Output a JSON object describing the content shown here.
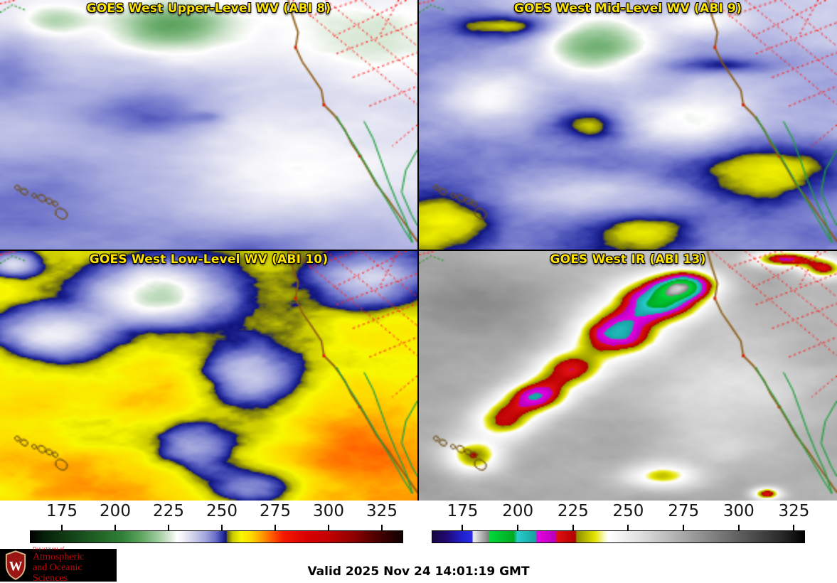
{
  "panels": [
    {
      "id": "abi8",
      "title": "GOES West Upper-Level WV (ABI 8)",
      "colormap": "wv",
      "field": {
        "seed": 11,
        "base": [
          233,
          231,
          247,
          239
        ],
        "ns": 3.2,
        "aspect": 1.8,
        "namp": 4.5,
        "warp": 0.35,
        "blobs": [
          [
            0.4,
            0.1,
            0.14,
            0.1,
            -22
          ],
          [
            0.13,
            0.08,
            0.08,
            0.06,
            -13
          ],
          [
            0.72,
            0.7,
            0.3,
            0.22,
            -8
          ],
          [
            0.86,
            0.15,
            0.18,
            0.12,
            -6
          ],
          [
            0.36,
            0.46,
            0.16,
            0.1,
            11
          ],
          [
            0.5,
            0.465,
            0.04,
            0.025,
            5
          ],
          [
            0.07,
            0.8,
            0.14,
            0.12,
            4
          ],
          [
            0.02,
            0.25,
            0.1,
            0.15,
            8
          ],
          [
            0.62,
            0.97,
            0.22,
            0.1,
            6
          ]
        ]
      }
    },
    {
      "id": "abi9",
      "title": "GOES West Mid-Level WV (ABI 9)",
      "colormap": "wv",
      "field": {
        "seed": 22,
        "base": [
          242,
          239,
          248,
          246
        ],
        "ns": 4.0,
        "aspect": 1.5,
        "namp": 6,
        "warp": 0.4,
        "blobs": [
          [
            0.22,
            0.1,
            0.13,
            0.05,
            14
          ],
          [
            0.42,
            0.5,
            0.09,
            0.07,
            12
          ],
          [
            0.05,
            0.88,
            0.12,
            0.1,
            12
          ],
          [
            0.55,
            0.93,
            0.12,
            0.07,
            10
          ],
          [
            0.83,
            0.7,
            0.17,
            0.14,
            13
          ],
          [
            0.72,
            0.26,
            0.12,
            0.035,
            11
          ],
          [
            0.42,
            0.18,
            0.13,
            0.13,
            -26
          ],
          [
            0.17,
            0.38,
            0.12,
            0.12,
            -14
          ],
          [
            0.66,
            0.48,
            0.16,
            0.12,
            -14
          ],
          [
            0.42,
            0.78,
            0.2,
            0.08,
            -12
          ],
          [
            0.68,
            0.08,
            0.1,
            0.06,
            -10
          ]
        ]
      }
    },
    {
      "id": "abi10",
      "title": "GOES West Low-Level WV (ABI 10)",
      "colormap": "wv",
      "field": {
        "seed": 33,
        "base": [
          258,
          254,
          262,
          268
        ],
        "ns": 4.5,
        "aspect": 1.4,
        "namp": 7.5,
        "warp": 0.45,
        "blobs": [
          [
            0.38,
            0.17,
            0.16,
            0.12,
            -38
          ],
          [
            0.12,
            0.33,
            0.14,
            0.1,
            -26
          ],
          [
            0.6,
            0.5,
            0.12,
            0.14,
            -24
          ],
          [
            0.47,
            0.78,
            0.1,
            0.12,
            -20
          ],
          [
            0.6,
            0.95,
            0.12,
            0.08,
            -16
          ],
          [
            0.88,
            0.12,
            0.12,
            0.1,
            -22
          ],
          [
            0.03,
            0.05,
            0.06,
            0.05,
            -24
          ],
          [
            0.12,
            0.88,
            0.15,
            0.1,
            7
          ],
          [
            0.85,
            0.8,
            0.15,
            0.12,
            8
          ],
          [
            0.3,
            0.55,
            0.18,
            0.1,
            4
          ]
        ]
      }
    },
    {
      "id": "abi13",
      "title": "GOES West IR (ABI 13)",
      "colormap": "ir",
      "field": {
        "seed": 44,
        "base": [
          272,
          268,
          276,
          274
        ],
        "ns": 5.0,
        "aspect": 1.3,
        "namp": 9,
        "warp": 0.5,
        "blobs": [
          [
            0.13,
            0.82,
            0.07,
            0.07,
            -48
          ],
          [
            0.2,
            0.68,
            0.08,
            0.08,
            -52
          ],
          [
            0.28,
            0.58,
            0.08,
            0.07,
            -58
          ],
          [
            0.36,
            0.47,
            0.09,
            0.08,
            -52
          ],
          [
            0.47,
            0.33,
            0.1,
            0.09,
            -62
          ],
          [
            0.57,
            0.2,
            0.11,
            0.09,
            -68
          ],
          [
            0.64,
            0.13,
            0.08,
            0.06,
            -60
          ],
          [
            0.87,
            0.03,
            0.08,
            0.035,
            -55
          ],
          [
            0.97,
            0.07,
            0.05,
            0.04,
            -45
          ],
          [
            0.58,
            0.9,
            0.09,
            0.05,
            -38
          ],
          [
            0.83,
            0.97,
            0.035,
            0.025,
            -55
          ],
          [
            0.75,
            0.55,
            0.2,
            0.15,
            -18
          ],
          [
            0.68,
            0.78,
            0.15,
            0.1,
            -13
          ],
          [
            0.12,
            0.2,
            0.15,
            0.12,
            10
          ]
        ]
      }
    }
  ],
  "colormaps": {
    "wv": {
      "range": [
        160,
        335
      ],
      "stops": [
        [
          160,
          "#000000"
        ],
        [
          167,
          "#06220a"
        ],
        [
          178,
          "#123f16"
        ],
        [
          192,
          "#226326"
        ],
        [
          203,
          "#2f8036"
        ],
        [
          212,
          "#5ea45f"
        ],
        [
          220,
          "#9ecb9e"
        ],
        [
          226,
          "#dcead9"
        ],
        [
          229,
          "#ffffff"
        ],
        [
          231.5,
          "#f2f2f8"
        ],
        [
          236,
          "#d2d4ec"
        ],
        [
          242,
          "#a4a8dd"
        ],
        [
          247,
          "#6a70c8"
        ],
        [
          250,
          "#3038a8"
        ],
        [
          252,
          "#10147e"
        ],
        [
          252.6,
          "#6a6a10"
        ],
        [
          255,
          "#c8c800"
        ],
        [
          259,
          "#f8f800"
        ],
        [
          264,
          "#ffd800"
        ],
        [
          269,
          "#ff9900"
        ],
        [
          274,
          "#ff5500"
        ],
        [
          279,
          "#f51800"
        ],
        [
          290,
          "#d80000"
        ],
        [
          300,
          "#c40000"
        ],
        [
          312,
          "#8e0000"
        ],
        [
          322,
          "#500000"
        ],
        [
          330,
          "#280000"
        ],
        [
          335,
          "#100000"
        ]
      ]
    },
    "ir": {
      "range": [
        161,
        330
      ],
      "stops": [
        [
          161,
          "#180640"
        ],
        [
          168,
          "#200a78"
        ],
        [
          174,
          "#2020c8"
        ],
        [
          179,
          "#2a2ae8"
        ],
        [
          179.6,
          "#f2f2f2"
        ],
        [
          186.5,
          "#808080"
        ],
        [
          187.1,
          "#00d838"
        ],
        [
          198,
          "#00a822"
        ],
        [
          199.6,
          "#28cccc"
        ],
        [
          208,
          "#18a0a0"
        ],
        [
          208.6,
          "#e400e4"
        ],
        [
          217,
          "#b800b8"
        ],
        [
          217.6,
          "#e01010"
        ],
        [
          226,
          "#b00000"
        ],
        [
          226.6,
          "#8e8e00"
        ],
        [
          235,
          "#e4e400"
        ],
        [
          239,
          "#f8f8c0"
        ],
        [
          241,
          "#ffffff"
        ],
        [
          255,
          "#e0e0e0"
        ],
        [
          275,
          "#a8a8a8"
        ],
        [
          300,
          "#606060"
        ],
        [
          320,
          "#282828"
        ],
        [
          330,
          "#000000"
        ]
      ]
    }
  },
  "colorbars": [
    {
      "colormap": "wv",
      "ticks": [
        175,
        200,
        225,
        250,
        275,
        300,
        325
      ]
    },
    {
      "colormap": "ir",
      "ticks": [
        175,
        200,
        225,
        250,
        275,
        300,
        325
      ]
    }
  ],
  "overlays": {
    "coast": {
      "color": "#8a5a14",
      "dots": [
        3,
        7,
        11
      ],
      "points": [
        [
          0.69,
          0.0
        ],
        [
          0.7,
          0.06
        ],
        [
          0.714,
          0.13
        ],
        [
          0.708,
          0.19
        ],
        [
          0.725,
          0.25
        ],
        [
          0.75,
          0.31
        ],
        [
          0.77,
          0.36
        ],
        [
          0.776,
          0.42
        ],
        [
          0.8,
          0.46
        ],
        [
          0.826,
          0.52
        ],
        [
          0.842,
          0.575
        ],
        [
          0.862,
          0.625
        ],
        [
          0.882,
          0.68
        ],
        [
          0.902,
          0.74
        ],
        [
          0.93,
          0.8
        ],
        [
          0.958,
          0.868
        ],
        [
          0.984,
          0.93
        ],
        [
          1.0,
          0.968
        ]
      ]
    },
    "baja": {
      "color": "#1f9e3e",
      "west": [
        [
          0.806,
          0.465
        ],
        [
          0.824,
          0.52
        ],
        [
          0.85,
          0.585
        ],
        [
          0.874,
          0.652
        ],
        [
          0.898,
          0.72
        ],
        [
          0.922,
          0.79
        ],
        [
          0.948,
          0.862
        ],
        [
          0.968,
          0.92
        ],
        [
          0.988,
          0.972
        ]
      ],
      "east": [
        [
          0.988,
          0.972
        ],
        [
          0.972,
          0.886
        ],
        [
          0.95,
          0.806
        ],
        [
          0.93,
          0.724
        ],
        [
          0.912,
          0.64
        ],
        [
          0.894,
          0.556
        ],
        [
          0.872,
          0.486
        ]
      ],
      "mainland": [
        [
          1.0,
          0.6
        ],
        [
          0.972,
          0.682
        ],
        [
          0.962,
          0.77
        ],
        [
          0.986,
          0.862
        ],
        [
          1.0,
          0.904
        ]
      ]
    },
    "borders": {
      "color": "#ff2020",
      "segments": [
        [
          [
            0.7,
            0.0
          ],
          [
            1.0,
            0.42
          ]
        ],
        [
          [
            0.78,
            0.0
          ],
          [
            1.0,
            0.3
          ]
        ],
        [
          [
            0.865,
            0.0
          ],
          [
            1.0,
            0.185
          ]
        ],
        [
          [
            0.742,
            0.065
          ],
          [
            0.86,
            0.0
          ]
        ],
        [
          [
            0.8,
            0.145
          ],
          [
            0.975,
            0.0
          ]
        ],
        [
          [
            0.806,
            0.215
          ],
          [
            1.0,
            0.09
          ]
        ],
        [
          [
            0.845,
            0.31
          ],
          [
            1.0,
            0.21
          ]
        ],
        [
          [
            0.885,
            0.425
          ],
          [
            1.0,
            0.345
          ]
        ],
        [
          [
            0.955,
            0.0
          ],
          [
            0.91,
            0.14
          ]
        ],
        [
          [
            1.0,
            0.5
          ],
          [
            0.94,
            0.585
          ]
        ]
      ]
    },
    "islands": {
      "color": "#6e4e12",
      "list": [
        [
          0.042,
          0.752,
          0.007
        ],
        [
          0.058,
          0.768,
          0.009
        ],
        [
          0.082,
          0.784,
          0.006
        ],
        [
          0.1,
          0.794,
          0.01
        ],
        [
          0.118,
          0.806,
          0.008
        ],
        [
          0.132,
          0.816,
          0.007
        ],
        [
          0.147,
          0.856,
          0.015
        ]
      ]
    },
    "nw": {
      "green": "#2a9a2a",
      "red": "#ff3030",
      "green_path": [
        [
          0.0,
          0.05
        ],
        [
          0.03,
          0.02
        ],
        [
          0.06,
          0.04
        ]
      ],
      "red_path": [
        [
          0.0,
          0.015
        ],
        [
          0.04,
          0.0
        ]
      ]
    }
  },
  "footer": {
    "valid": "Valid 2025 Nov 24 14:01:19 GMT",
    "logo": {
      "dept": "Department of",
      "name1": "Atmospheric",
      "name2": "and Oceanic Sciences",
      "crest_letter": "W"
    }
  }
}
